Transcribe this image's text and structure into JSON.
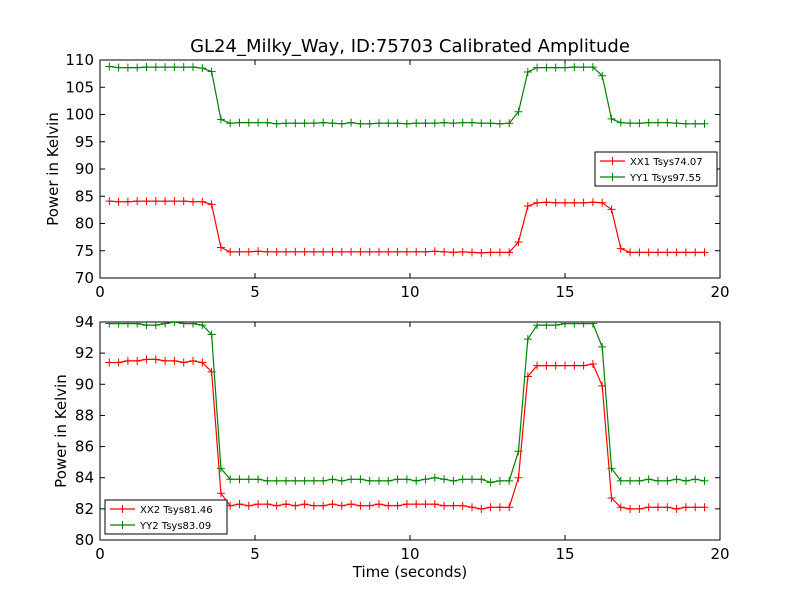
{
  "chart_data": [
    {
      "type": "line",
      "title": "GL24_Milky_Way, ID:75703 Calibrated Amplitude",
      "xlabel": "",
      "ylabel": "Power in Kelvin",
      "xlim": [
        0,
        20
      ],
      "ylim": [
        70,
        110
      ],
      "xticks": [
        "0",
        "5",
        "10",
        "15",
        "20"
      ],
      "yticks": [
        "70",
        "75",
        "80",
        "85",
        "90",
        "95",
        "100",
        "105",
        "110"
      ],
      "legend_position": "center-right",
      "x": [
        0.3,
        0.6,
        0.9,
        1.2,
        1.5,
        1.8,
        2.1,
        2.4,
        2.7,
        3.0,
        3.3,
        3.6,
        3.9,
        4.2,
        4.5,
        4.8,
        5.1,
        5.4,
        5.7,
        6.0,
        6.3,
        6.6,
        6.9,
        7.2,
        7.5,
        7.8,
        8.1,
        8.4,
        8.7,
        9.0,
        9.3,
        9.6,
        9.9,
        10.2,
        10.5,
        10.8,
        11.1,
        11.4,
        11.7,
        12.0,
        12.3,
        12.6,
        12.9,
        13.2,
        13.5,
        13.8,
        14.1,
        14.4,
        14.7,
        15.0,
        15.3,
        15.6,
        15.9,
        16.2,
        16.5,
        16.8,
        17.1,
        17.4,
        17.7,
        18.0,
        18.3,
        18.6,
        18.9,
        19.2,
        19.5
      ],
      "series": [
        {
          "name": "XX1 Tsys74.07",
          "color": "#ff0000",
          "values": [
            84.1,
            84.0,
            84.0,
            84.1,
            84.1,
            84.1,
            84.1,
            84.1,
            84.1,
            84.0,
            84.0,
            83.5,
            75.6,
            74.8,
            74.8,
            74.8,
            74.9,
            74.8,
            74.8,
            74.8,
            74.8,
            74.8,
            74.8,
            74.8,
            74.8,
            74.8,
            74.8,
            74.8,
            74.8,
            74.8,
            74.8,
            74.8,
            74.8,
            74.8,
            74.8,
            74.9,
            74.8,
            74.7,
            74.8,
            74.7,
            74.6,
            74.7,
            74.7,
            74.7,
            76.6,
            83.2,
            83.8,
            83.9,
            83.8,
            83.8,
            83.8,
            83.8,
            83.9,
            83.8,
            82.6,
            75.4,
            74.7,
            74.7,
            74.7,
            74.7,
            74.7,
            74.7,
            74.7,
            74.7,
            74.7
          ]
        },
        {
          "name": "YY1 Tsys97.55",
          "color": "#008000",
          "values": [
            108.8,
            108.6,
            108.6,
            108.6,
            108.7,
            108.7,
            108.7,
            108.7,
            108.7,
            108.7,
            108.5,
            107.9,
            99.1,
            98.4,
            98.5,
            98.5,
            98.5,
            98.5,
            98.3,
            98.4,
            98.4,
            98.4,
            98.4,
            98.5,
            98.4,
            98.3,
            98.5,
            98.3,
            98.3,
            98.4,
            98.4,
            98.4,
            98.3,
            98.4,
            98.4,
            98.4,
            98.5,
            98.4,
            98.5,
            98.5,
            98.4,
            98.4,
            98.3,
            98.4,
            100.5,
            107.8,
            108.6,
            108.6,
            108.6,
            108.6,
            108.7,
            108.7,
            108.7,
            107.1,
            99.2,
            98.5,
            98.4,
            98.4,
            98.5,
            98.5,
            98.5,
            98.4,
            98.3,
            98.3,
            98.3
          ]
        }
      ]
    },
    {
      "type": "line",
      "title": "",
      "xlabel": "Time (seconds)",
      "ylabel": "Power in Kelvin",
      "xlim": [
        0,
        20
      ],
      "ylim": [
        80,
        94
      ],
      "xticks": [
        "0",
        "5",
        "10",
        "15",
        "20"
      ],
      "yticks": [
        "80",
        "82",
        "84",
        "86",
        "88",
        "90",
        "92",
        "94"
      ],
      "legend_position": "lower-left",
      "x": [
        0.3,
        0.6,
        0.9,
        1.2,
        1.5,
        1.8,
        2.1,
        2.4,
        2.7,
        3.0,
        3.3,
        3.6,
        3.9,
        4.2,
        4.5,
        4.8,
        5.1,
        5.4,
        5.7,
        6.0,
        6.3,
        6.6,
        6.9,
        7.2,
        7.5,
        7.8,
        8.1,
        8.4,
        8.7,
        9.0,
        9.3,
        9.6,
        9.9,
        10.2,
        10.5,
        10.8,
        11.1,
        11.4,
        11.7,
        12.0,
        12.3,
        12.6,
        12.9,
        13.2,
        13.5,
        13.8,
        14.1,
        14.4,
        14.7,
        15.0,
        15.3,
        15.6,
        15.9,
        16.2,
        16.5,
        16.8,
        17.1,
        17.4,
        17.7,
        18.0,
        18.3,
        18.6,
        18.9,
        19.2,
        19.5
      ],
      "series": [
        {
          "name": "XX2 Tsys81.46",
          "color": "#ff0000",
          "values": [
            91.4,
            91.4,
            91.5,
            91.5,
            91.6,
            91.6,
            91.5,
            91.5,
            91.4,
            91.5,
            91.4,
            90.8,
            83.0,
            82.2,
            82.3,
            82.2,
            82.3,
            82.3,
            82.2,
            82.3,
            82.2,
            82.3,
            82.2,
            82.2,
            82.3,
            82.2,
            82.3,
            82.2,
            82.2,
            82.3,
            82.2,
            82.2,
            82.3,
            82.3,
            82.3,
            82.3,
            82.2,
            82.2,
            82.2,
            82.1,
            82.0,
            82.1,
            82.1,
            82.1,
            84.0,
            90.5,
            91.2,
            91.2,
            91.2,
            91.2,
            91.2,
            91.2,
            91.3,
            89.9,
            82.7,
            82.1,
            82.0,
            82.0,
            82.1,
            82.1,
            82.1,
            82.0,
            82.1,
            82.1,
            82.1
          ]
        },
        {
          "name": "YY2 Tsys83.09",
          "color": "#008000",
          "values": [
            93.9,
            93.9,
            93.9,
            93.9,
            93.8,
            93.8,
            93.9,
            94.0,
            93.9,
            93.9,
            93.8,
            93.2,
            84.6,
            83.9,
            83.9,
            83.9,
            83.9,
            83.8,
            83.8,
            83.8,
            83.8,
            83.8,
            83.8,
            83.8,
            83.9,
            83.8,
            83.9,
            83.9,
            83.8,
            83.8,
            83.8,
            83.9,
            83.9,
            83.8,
            83.9,
            84.0,
            83.9,
            83.8,
            83.9,
            83.9,
            83.9,
            83.7,
            83.8,
            83.8,
            85.7,
            92.9,
            93.8,
            93.8,
            93.8,
            93.9,
            93.9,
            93.9,
            93.9,
            92.4,
            84.6,
            83.8,
            83.8,
            83.8,
            83.9,
            83.8,
            83.8,
            83.9,
            83.8,
            83.9,
            83.8
          ]
        }
      ]
    }
  ]
}
